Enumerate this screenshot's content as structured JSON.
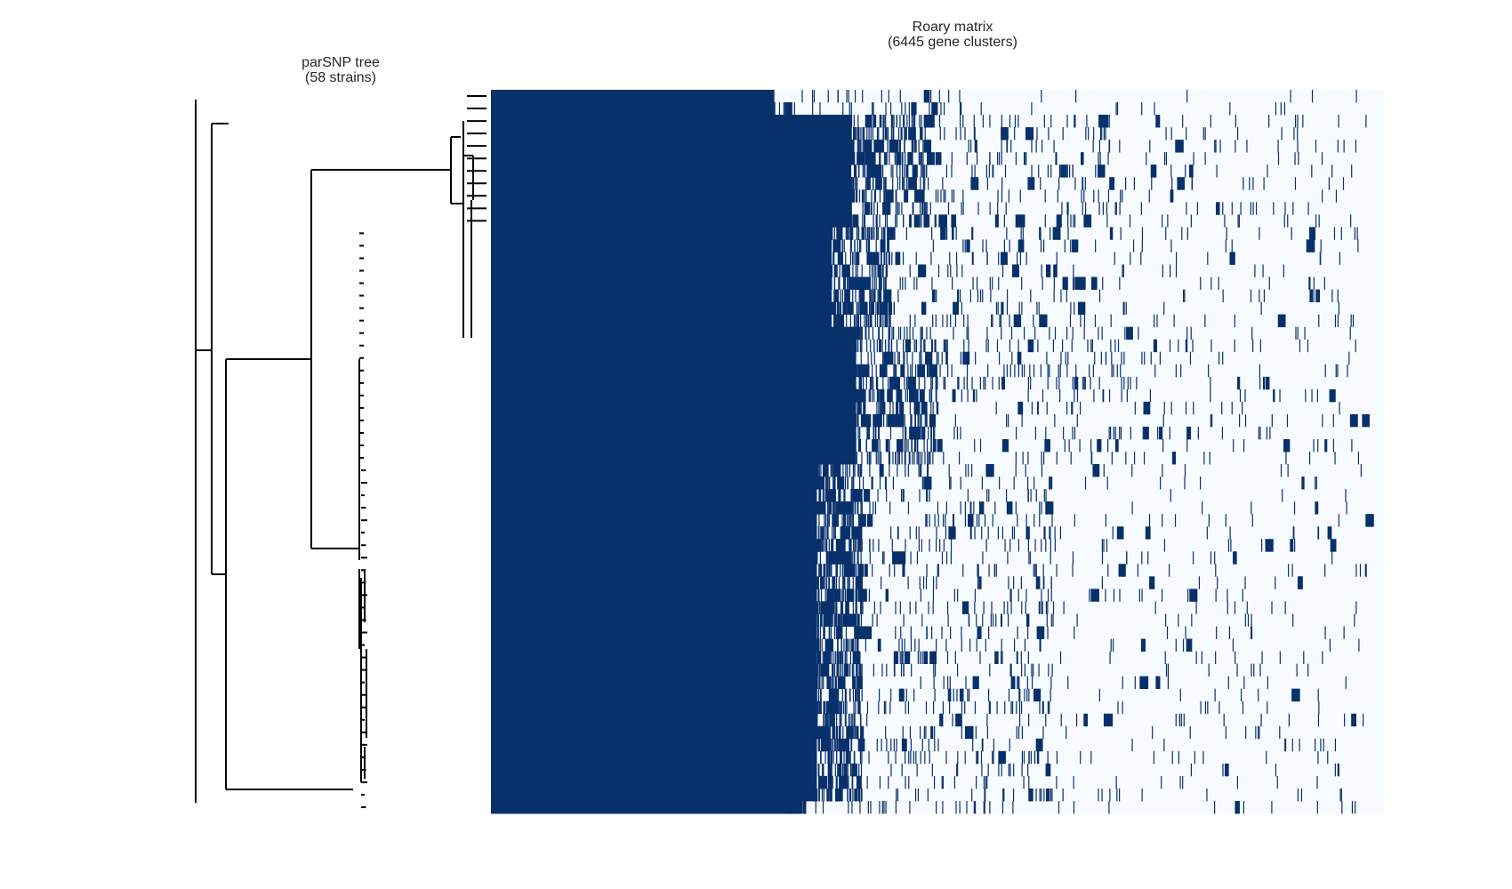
{
  "tree_panel": {
    "title_line1": "parSNP tree",
    "title_line2": "(58 strains)"
  },
  "matrix_panel": {
    "title_line1": "Roary matrix",
    "title_line2": "(6445 gene clusters)"
  },
  "colors": {
    "present": "#08306b",
    "absent": "#f7fbff",
    "tree": "#000000"
  },
  "chart_data": [
    {
      "type": "dendrogram",
      "title": "parSNP tree\n(58 strains)",
      "leaves": 58,
      "clades": [
        {
          "name": "",
          "leaf_range": [
            1,
            11
          ]
        },
        {
          "name": "",
          "leaf_range": [
            12,
            30
          ]
        },
        {
          "name": "",
          "leaf_range": [
            31,
            58
          ]
        }
      ]
    },
    {
      "type": "heatmap",
      "title": "Roary matrix\n(6445 gene clusters)",
      "rows": 58,
      "columns": 6445,
      "values": "binary presence/absence",
      "core_fraction_approx": 0.31,
      "row_blocks": [
        {
          "rows": [
            1,
            2
          ],
          "shared_fraction": 0.31
        },
        {
          "rows": [
            3,
            11
          ],
          "shared_fraction": 0.48
        },
        {
          "rows": [
            12,
            19
          ],
          "shared_fraction": 0.44
        },
        {
          "rows": [
            20,
            30
          ],
          "shared_fraction": 0.49
        },
        {
          "rows": [
            31,
            35
          ],
          "shared_fraction": 0.41
        },
        {
          "rows": [
            36,
            57
          ],
          "shared_fraction": 0.41
        },
        {
          "rows": [
            58,
            58
          ],
          "shared_fraction": 0.35
        }
      ]
    }
  ]
}
